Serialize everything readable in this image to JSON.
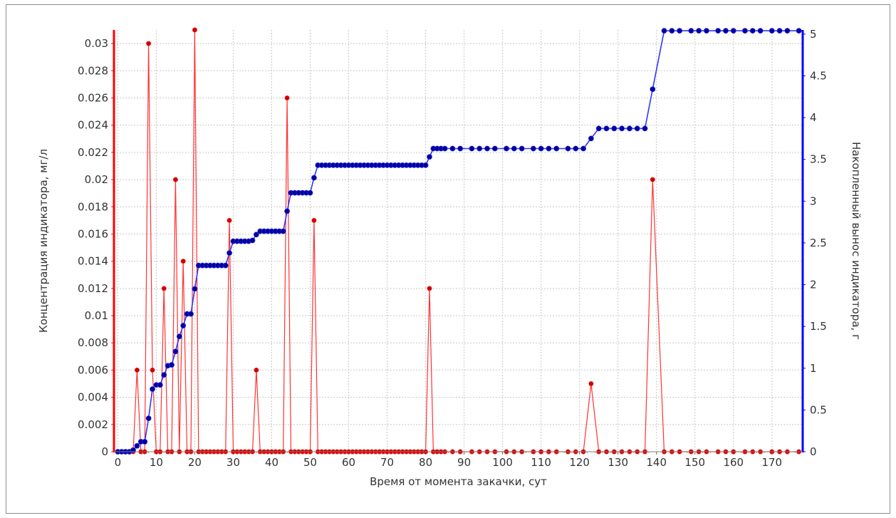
{
  "chart_data": {
    "type": "line",
    "title": "",
    "xlabel": "Время от момента закачки, сут",
    "ylabel": "Концентрация индикатора, мг/л",
    "y2label": "Накопленный вынос индикатора, г",
    "xlim": [
      -1,
      178
    ],
    "ylim": [
      0,
      0.031
    ],
    "y2lim": [
      0,
      5.05
    ],
    "x_ticks": [
      "0",
      "10",
      "20",
      "30",
      "40",
      "50",
      "60",
      "70",
      "80",
      "90",
      "100",
      "110",
      "120",
      "130",
      "140",
      "150",
      "160",
      "170"
    ],
    "x_tick_values": [
      0,
      10,
      20,
      30,
      40,
      50,
      60,
      70,
      80,
      90,
      100,
      110,
      120,
      130,
      140,
      150,
      160,
      170
    ],
    "y_ticks": [
      "0",
      "0.002",
      "0.004",
      "0.006",
      "0.008",
      "0.01",
      "0.012",
      "0.014",
      "0.016",
      "0.018",
      "0.02",
      "0.022",
      "0.024",
      "0.026",
      "0.028",
      "0.03"
    ],
    "y_tick_values": [
      0,
      0.002,
      0.004,
      0.006,
      0.008,
      0.01,
      0.012,
      0.014,
      0.016,
      0.018,
      0.02,
      0.022,
      0.024,
      0.026,
      0.028,
      0.03
    ],
    "y2_ticks": [
      "0",
      "0.5",
      "1",
      "1.5",
      "2",
      "2.5",
      "3",
      "3.5",
      "4",
      "4.5",
      "5"
    ],
    "y2_tick_values": [
      0,
      0.5,
      1,
      1.5,
      2,
      2.5,
      3,
      3.5,
      4,
      4.5,
      5
    ],
    "grid": true,
    "legend": "none",
    "colors": {
      "concentration": "#ff3333",
      "concentration_marker": "#cc0000",
      "cumulative": "#3333ff",
      "cumulative_marker": "#000099",
      "left_axis": "#ff0000",
      "right_axis": "#0000ff",
      "grid": "#c8c8c8",
      "text": "#333333"
    },
    "series": [
      {
        "axis": "left",
        "x": [
          0,
          1,
          2,
          3,
          4,
          5,
          6,
          7,
          8,
          9,
          10,
          11,
          12,
          13,
          14,
          15,
          16,
          17,
          18,
          19,
          20,
          21,
          22,
          23,
          24,
          25,
          26,
          27,
          28,
          29,
          30,
          31,
          32,
          33,
          34,
          35,
          36,
          37,
          38,
          39,
          40,
          41,
          42,
          43,
          44,
          45,
          46,
          47,
          48,
          49,
          50,
          51,
          52,
          53,
          54,
          55,
          56,
          57,
          58,
          59,
          60,
          61,
          62,
          63,
          64,
          65,
          66,
          67,
          68,
          69,
          70,
          71,
          72,
          73,
          74,
          75,
          76,
          77,
          78,
          79,
          80,
          81,
          82,
          83,
          84,
          85,
          87,
          89,
          92,
          94,
          96,
          98,
          101,
          103,
          105,
          108,
          110,
          112,
          114,
          117,
          119,
          121,
          123,
          125,
          127,
          129,
          131,
          133,
          135,
          137,
          139,
          142,
          144,
          146,
          149,
          151,
          153,
          156,
          158,
          160,
          163,
          165,
          167,
          170,
          172,
          174,
          177
        ],
        "values": [
          0,
          0,
          0,
          0,
          0,
          0.006,
          0,
          0,
          0.03,
          0.006,
          0,
          0,
          0.012,
          0,
          0,
          0.02,
          0,
          0.014,
          0,
          0,
          0.031,
          0,
          0,
          0,
          0,
          0,
          0,
          0,
          0,
          0.017,
          0,
          0,
          0,
          0,
          0,
          0,
          0.006,
          0,
          0,
          0,
          0,
          0,
          0,
          0,
          0.026,
          0,
          0,
          0,
          0,
          0,
          0,
          0.017,
          0,
          0,
          0,
          0,
          0,
          0,
          0,
          0,
          0,
          0,
          0,
          0,
          0,
          0,
          0,
          0,
          0,
          0,
          0,
          0,
          0,
          0,
          0,
          0,
          0,
          0,
          0,
          0,
          0,
          0.012,
          0,
          0,
          0,
          0,
          0,
          0,
          0,
          0,
          0,
          0,
          0,
          0,
          0,
          0,
          0,
          0,
          0,
          0,
          0,
          0,
          0.005,
          0,
          0,
          0,
          0,
          0,
          0,
          0,
          0.02,
          0,
          0,
          0,
          0,
          0,
          0,
          0,
          0,
          0,
          0,
          0,
          0,
          0,
          0,
          0,
          0
        ]
      },
      {
        "axis": "right",
        "x": [
          0,
          1,
          2,
          3,
          4,
          5,
          6,
          7,
          8,
          9,
          10,
          11,
          12,
          13,
          14,
          15,
          16,
          17,
          18,
          19,
          20,
          21,
          22,
          23,
          24,
          25,
          26,
          27,
          28,
          29,
          30,
          31,
          32,
          33,
          34,
          35,
          36,
          37,
          38,
          39,
          40,
          41,
          42,
          43,
          44,
          45,
          46,
          47,
          48,
          49,
          50,
          51,
          52,
          53,
          54,
          55,
          56,
          57,
          58,
          59,
          60,
          61,
          62,
          63,
          64,
          65,
          66,
          67,
          68,
          69,
          70,
          71,
          72,
          73,
          74,
          75,
          76,
          77,
          78,
          79,
          80,
          81,
          82,
          83,
          84,
          85,
          87,
          89,
          92,
          94,
          96,
          98,
          101,
          103,
          105,
          108,
          110,
          112,
          114,
          117,
          119,
          121,
          123,
          125,
          127,
          129,
          131,
          133,
          135,
          137,
          139,
          142,
          144,
          146,
          149,
          151,
          153,
          156,
          158,
          160,
          163,
          165,
          167,
          170,
          172,
          174,
          177
        ],
        "values": [
          0,
          0,
          0,
          0,
          0.02,
          0.07,
          0.12,
          0.12,
          0.4,
          0.75,
          0.8,
          0.8,
          0.92,
          1.03,
          1.04,
          1.2,
          1.38,
          1.51,
          1.65,
          1.65,
          1.95,
          2.23,
          2.23,
          2.23,
          2.23,
          2.23,
          2.23,
          2.23,
          2.23,
          2.38,
          2.52,
          2.52,
          2.52,
          2.52,
          2.52,
          2.53,
          2.6,
          2.64,
          2.64,
          2.64,
          2.64,
          2.64,
          2.64,
          2.64,
          2.88,
          3.1,
          3.1,
          3.1,
          3.1,
          3.1,
          3.1,
          3.28,
          3.43,
          3.43,
          3.43,
          3.43,
          3.43,
          3.43,
          3.43,
          3.43,
          3.43,
          3.43,
          3.43,
          3.43,
          3.43,
          3.43,
          3.43,
          3.43,
          3.43,
          3.43,
          3.43,
          3.43,
          3.43,
          3.43,
          3.43,
          3.43,
          3.43,
          3.43,
          3.43,
          3.43,
          3.43,
          3.53,
          3.63,
          3.63,
          3.63,
          3.63,
          3.63,
          3.63,
          3.63,
          3.63,
          3.63,
          3.63,
          3.63,
          3.63,
          3.63,
          3.63,
          3.63,
          3.63,
          3.63,
          3.63,
          3.63,
          3.63,
          3.75,
          3.87,
          3.87,
          3.87,
          3.87,
          3.87,
          3.87,
          3.87,
          4.34,
          5.04,
          5.04,
          5.04,
          5.04,
          5.04,
          5.04,
          5.04,
          5.04,
          5.04,
          5.04,
          5.04,
          5.04,
          5.04,
          5.04,
          5.04,
          5.04
        ]
      }
    ]
  }
}
